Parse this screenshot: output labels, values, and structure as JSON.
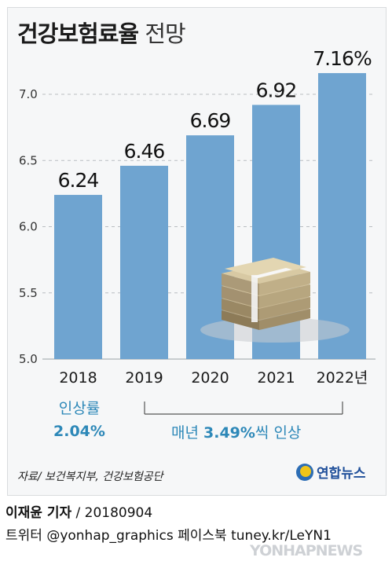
{
  "title": {
    "bold": "건강보험료율",
    "light": "전망"
  },
  "chart_data": {
    "type": "bar",
    "categories": [
      "2018",
      "2019",
      "2020",
      "2021",
      "2022년"
    ],
    "values": [
      6.24,
      6.46,
      6.69,
      6.92,
      7.16
    ],
    "data_labels": [
      "6.24",
      "6.46",
      "6.69",
      "6.92",
      "7.16%"
    ],
    "ylim": [
      5.0,
      7.2
    ],
    "yticks": [
      5.0,
      5.5,
      6.0,
      6.5,
      7.0
    ],
    "ytick_labels": [
      "5.0",
      "5.5",
      "6.0",
      "6.5",
      "7.0"
    ],
    "grid": true,
    "color": "#6fa4d0"
  },
  "notes": {
    "first_label": "인상률",
    "first_value": "2.04%",
    "rest_prefix": "매년 ",
    "rest_value": "3.49%",
    "rest_suffix": "씩 인상"
  },
  "source": "자료/ 보건복지부, 건강보험공단",
  "logo": {
    "name": "연합뉴스"
  },
  "byline": {
    "reporter": "이재윤 기자",
    "date": " / 20180904"
  },
  "social": "트위터 @yonhap_graphics  페이스북 tuney.kr/LeYN1",
  "watermark": "YONHAPNEWS",
  "accent_color": "#2d88b8"
}
